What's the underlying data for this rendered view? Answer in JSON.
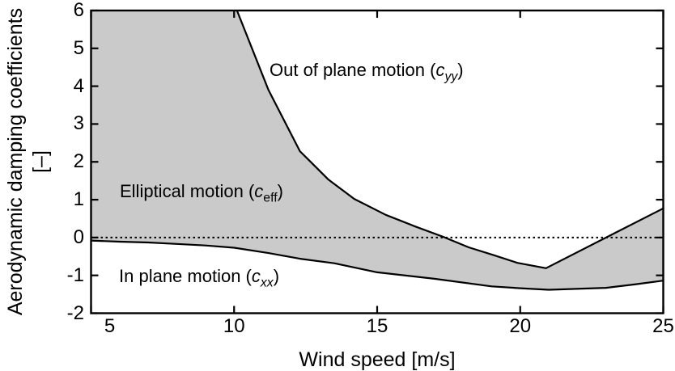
{
  "chart_data": {
    "type": "area",
    "title": "",
    "xlabel": "Wind speed [m/s]",
    "ylabel_line1": "Aerodynamic damping coefficients",
    "ylabel_line2": "[–]",
    "xlim": [
      5,
      25
    ],
    "ylim": [
      -2,
      6
    ],
    "xticks": [
      5,
      10,
      15,
      20,
      25
    ],
    "yticks": [
      -2,
      -1,
      0,
      1,
      2,
      3,
      4,
      5,
      6
    ],
    "grid": false,
    "zero_line_y": 0,
    "zero_line_style": "dotted",
    "fill_color": "#cacaca",
    "line_color": "#000000",
    "background_color": "#ffffff",
    "legend_position": "none",
    "series": [
      {
        "name": "Out of plane motion (c_yy)",
        "clipped_above": 6,
        "points": [
          [
            10.1,
            6.0
          ],
          [
            11.2,
            3.9
          ],
          [
            12.3,
            2.28
          ],
          [
            13.3,
            1.53
          ],
          [
            14.2,
            1.02
          ],
          [
            15.3,
            0.6
          ],
          [
            16.3,
            0.3
          ],
          [
            17.3,
            0.02
          ],
          [
            18.2,
            -0.26
          ],
          [
            19.1,
            -0.47
          ],
          [
            19.9,
            -0.67
          ],
          [
            20.9,
            -0.81
          ],
          [
            25.0,
            0.77
          ]
        ]
      },
      {
        "name": "In plane motion (c_xx)",
        "points": [
          [
            5.0,
            -0.08
          ],
          [
            6.0,
            -0.11
          ],
          [
            7.0,
            -0.13
          ],
          [
            8.0,
            -0.17
          ],
          [
            9.0,
            -0.21
          ],
          [
            10.0,
            -0.27
          ],
          [
            11.2,
            -0.41
          ],
          [
            12.3,
            -0.56
          ],
          [
            13.5,
            -0.68
          ],
          [
            15.0,
            -0.92
          ],
          [
            17.0,
            -1.09
          ],
          [
            19.0,
            -1.29
          ],
          [
            20.0,
            -1.34
          ],
          [
            21.0,
            -1.38
          ],
          [
            23.0,
            -1.33
          ],
          [
            24.0,
            -1.24
          ],
          [
            25.0,
            -1.14
          ]
        ]
      }
    ],
    "shaded_region": "between the two series, clipped to axes box",
    "annotations": [
      {
        "prefix": "Out of plane motion (",
        "var": "c",
        "sub": "yy",
        "suffix": ")",
        "sub_italic": true,
        "x": 11.25,
        "y": 4.31
      },
      {
        "prefix": "Elliptical motion (",
        "var": "c",
        "sub": "eff",
        "suffix": ")",
        "sub_italic": false,
        "x": 6.0,
        "y": 1.11
      },
      {
        "prefix": "In plane motion (",
        "var": "c",
        "sub": "xx",
        "suffix": ")",
        "sub_italic": true,
        "x": 5.98,
        "y": -1.13
      }
    ]
  },
  "layout_values": {
    "note": "axis tick label strings rendered from xticks/yticks"
  }
}
